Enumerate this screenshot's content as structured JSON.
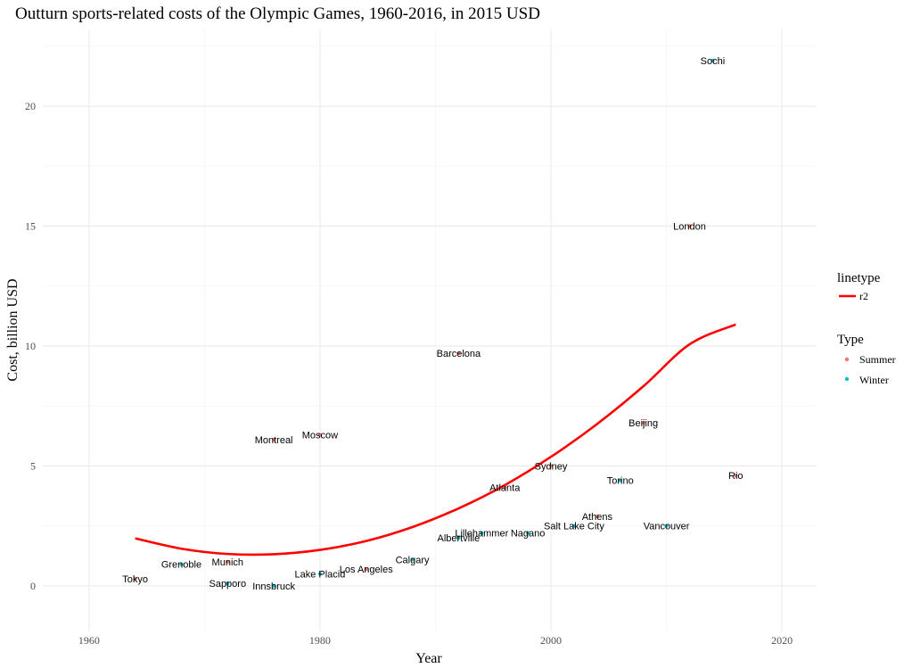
{
  "chart_data": {
    "type": "scatter",
    "title": "Outturn sports-related costs of the Olympic Games, 1960-2016, in 2015 USD",
    "xlabel": "Year",
    "ylabel": "Cost, billion USD",
    "xlim": [
      1956,
      2023
    ],
    "ylim": [
      -1.9,
      23.2
    ],
    "x_ticks": [
      1960,
      1980,
      2000,
      2020
    ],
    "y_ticks": [
      0,
      5,
      10,
      15,
      20
    ],
    "grid": true,
    "colors": {
      "Summer": "#F8766D",
      "Winter": "#00BFC4",
      "r2": "#FF0000"
    },
    "series": [
      {
        "name": "Summer",
        "points": [
          {
            "label": "Tokyo",
            "x": 1964,
            "y": 0.3
          },
          {
            "label": "Munich",
            "x": 1972,
            "y": 1.0
          },
          {
            "label": "Montreal",
            "x": 1976,
            "y": 6.1
          },
          {
            "label": "Moscow",
            "x": 1980,
            "y": 6.3
          },
          {
            "label": "Los Angeles",
            "x": 1984,
            "y": 0.7
          },
          {
            "label": "Barcelona",
            "x": 1992,
            "y": 9.7
          },
          {
            "label": "Atlanta",
            "x": 1996,
            "y": 4.1
          },
          {
            "label": "Sydney",
            "x": 2000,
            "y": 5.0
          },
          {
            "label": "Athens",
            "x": 2004,
            "y": 2.9
          },
          {
            "label": "Beijing",
            "x": 2008,
            "y": 6.8
          },
          {
            "label": "London",
            "x": 2012,
            "y": 15.0
          },
          {
            "label": "Rio",
            "x": 2016,
            "y": 4.6
          }
        ]
      },
      {
        "name": "Winter",
        "points": [
          {
            "label": "Grenoble",
            "x": 1968,
            "y": 0.9
          },
          {
            "label": "Sapporo",
            "x": 1972,
            "y": 0.1
          },
          {
            "label": "Innsbruck",
            "x": 1976,
            "y": 0.0
          },
          {
            "label": "Lake Placid",
            "x": 1980,
            "y": 0.5
          },
          {
            "label": "Calgary",
            "x": 1988,
            "y": 1.1
          },
          {
            "label": "Albertville",
            "x": 1992,
            "y": 2.0
          },
          {
            "label": "Lillehammer",
            "x": 1994,
            "y": 2.2
          },
          {
            "label": "Nagano",
            "x": 1998,
            "y": 2.2
          },
          {
            "label": "Salt Lake City",
            "x": 2002,
            "y": 2.5
          },
          {
            "label": "Torino",
            "x": 2006,
            "y": 4.4
          },
          {
            "label": "Vancouver",
            "x": 2010,
            "y": 2.5
          },
          {
            "label": "Sochi",
            "x": 2014,
            "y": 21.9
          }
        ]
      }
    ],
    "fit_line": {
      "name": "r2",
      "x": [
        1964,
        1968,
        1972,
        1976,
        1980,
        1984,
        1988,
        1992,
        1996,
        2000,
        2004,
        2008,
        2012,
        2016
      ],
      "y": [
        1.98,
        1.55,
        1.33,
        1.32,
        1.5,
        1.87,
        2.45,
        3.23,
        4.2,
        5.38,
        6.75,
        8.32,
        10.07,
        10.9
      ]
    },
    "legend": {
      "position": "right",
      "linetype_title": "linetype",
      "linetype_items": [
        "r2"
      ],
      "type_title": "Type",
      "type_items": [
        "Summer",
        "Winter"
      ]
    }
  }
}
